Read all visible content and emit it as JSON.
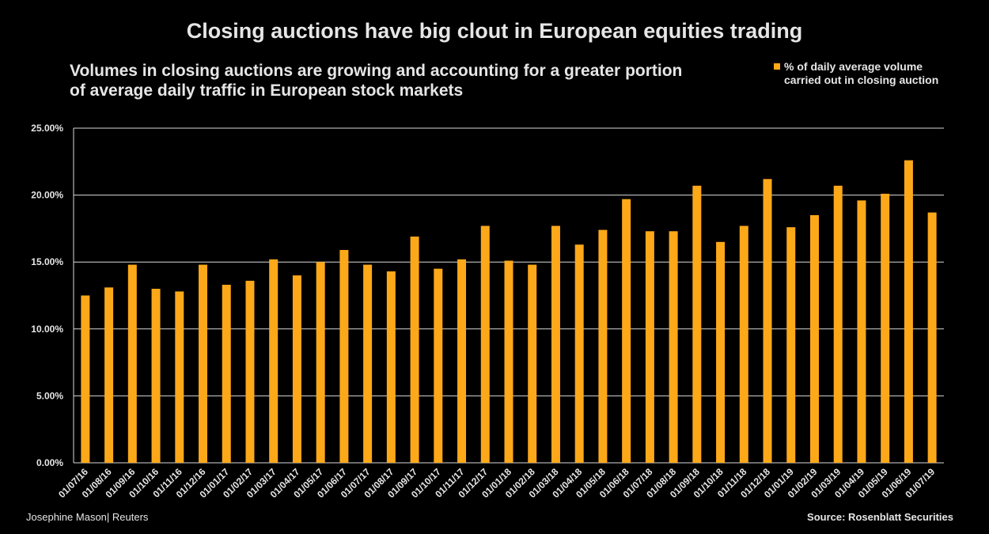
{
  "title": "Closing auctions have big clout in European equities trading",
  "subtitle": "Volumes in closing auctions are growing and accounting for a greater portion of average daily traffic in European stock markets",
  "credit": "Josephine Mason| Reuters",
  "source": "Source: Rosenblatt Securities",
  "colors": {
    "bar": "#fca819",
    "background": "#000000",
    "grid": "#d9d9d9"
  },
  "chart_data": {
    "type": "bar",
    "title": "Closing auctions have big clout in European equities trading",
    "xlabel": "",
    "ylabel": "",
    "ylim": [
      0,
      25
    ],
    "yticks": [
      "0.00%",
      "5.00%",
      "10.00%",
      "15.00%",
      "20.00%",
      "25.00%"
    ],
    "grid": true,
    "legend_position": "top-right",
    "categories": [
      "01/07/16",
      "01/08/16",
      "01/09/16",
      "01/10/16",
      "01/11/16",
      "01/12/16",
      "01/01/17",
      "01/02/17",
      "01/03/17",
      "01/04/17",
      "01/05/17",
      "01/06/17",
      "01/07/17",
      "01/08/17",
      "01/09/17",
      "01/10/17",
      "01/11/17",
      "01/12/17",
      "01/01/18",
      "01/02/18",
      "01/03/18",
      "01/04/18",
      "01/05/18",
      "01/06/18",
      "01/07/18",
      "01/08/18",
      "01/09/18",
      "01/10/18",
      "01/11/18",
      "01/12/18",
      "01/01/19",
      "01/02/19",
      "01/03/19",
      "01/04/19",
      "01/05/19",
      "01/06/19",
      "01/07/19"
    ],
    "series": [
      {
        "name": "% of daily average volume carried out in closing auction",
        "values": [
          12.5,
          13.1,
          14.8,
          13.0,
          12.8,
          14.8,
          13.3,
          13.6,
          15.2,
          14.0,
          15.0,
          15.9,
          14.8,
          14.3,
          16.9,
          14.5,
          15.2,
          17.7,
          15.1,
          14.8,
          17.7,
          16.3,
          17.4,
          19.7,
          17.3,
          17.3,
          20.7,
          16.5,
          17.7,
          21.2,
          17.6,
          18.5,
          20.7,
          19.6,
          20.1,
          22.6,
          18.7
        ]
      }
    ]
  }
}
